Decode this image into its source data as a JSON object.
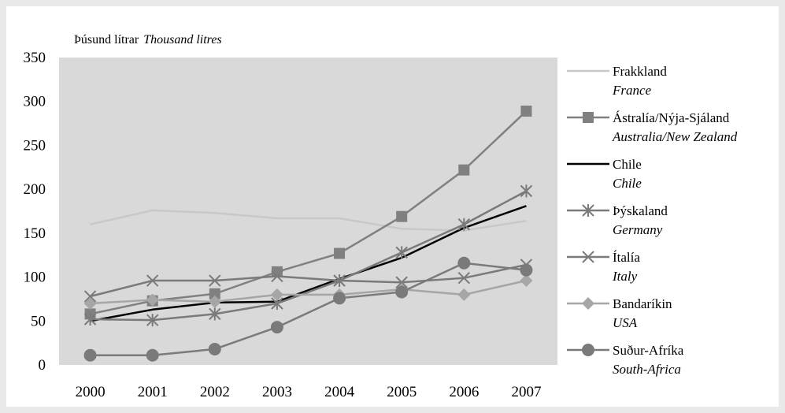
{
  "chart_data": {
    "type": "line",
    "unit_label": "Þúsund lítrar",
    "unit_label_en": "Thousand litres",
    "categories": [
      "2000",
      "2001",
      "2002",
      "2003",
      "2004",
      "2005",
      "2006",
      "2007"
    ],
    "ylim": [
      0,
      350
    ],
    "yticks": [
      "0",
      "50",
      "100",
      "150",
      "200",
      "250",
      "300",
      "350"
    ],
    "grid": false,
    "legend_position": "right",
    "series": [
      {
        "name": "Frakkland",
        "name_en": "France",
        "color": "#c8c8c8",
        "marker": "none",
        "width": 2.5,
        "values": [
          160,
          176,
          173,
          167,
          167,
          155,
          153,
          164
        ]
      },
      {
        "name": "Ástralía/Nýja-Sjáland",
        "name_en": "Australia/New Zealand",
        "color": "#808080",
        "marker": "square",
        "width": 2.5,
        "values": [
          58,
          73,
          81,
          106,
          127,
          169,
          222,
          289
        ]
      },
      {
        "name": "Chile",
        "name_en": "Chile",
        "color": "#000000",
        "marker": "none",
        "width": 2.5,
        "values": [
          50,
          63,
          71,
          72,
          98,
          122,
          156,
          181
        ]
      },
      {
        "name": "Þýskaland",
        "name_en": "Germany",
        "color": "#7a7a7a",
        "marker": "star",
        "width": 2.5,
        "values": [
          52,
          51,
          58,
          70,
          96,
          128,
          160,
          198
        ]
      },
      {
        "name": "Ítalía",
        "name_en": "Italy",
        "color": "#7a7a7a",
        "marker": "x",
        "width": 2.5,
        "values": [
          78,
          96,
          96,
          101,
          96,
          94,
          99,
          114
        ]
      },
      {
        "name": "Bandaríkin",
        "name_en": "USA",
        "color": "#a6a6a6",
        "marker": "diamond",
        "width": 2.5,
        "values": [
          70,
          74,
          72,
          80,
          80,
          86,
          80,
          96
        ]
      },
      {
        "name": "Suður-Afríka",
        "name_en": "South-Africa",
        "color": "#7a7a7a",
        "marker": "circle",
        "width": 2.5,
        "values": [
          11,
          11,
          18,
          43,
          76,
          83,
          116,
          108
        ]
      }
    ]
  },
  "colors": {
    "page_background": "#e9e9e9",
    "panel_background": "#ffffff",
    "plot_background": "#d9d9d9"
  }
}
